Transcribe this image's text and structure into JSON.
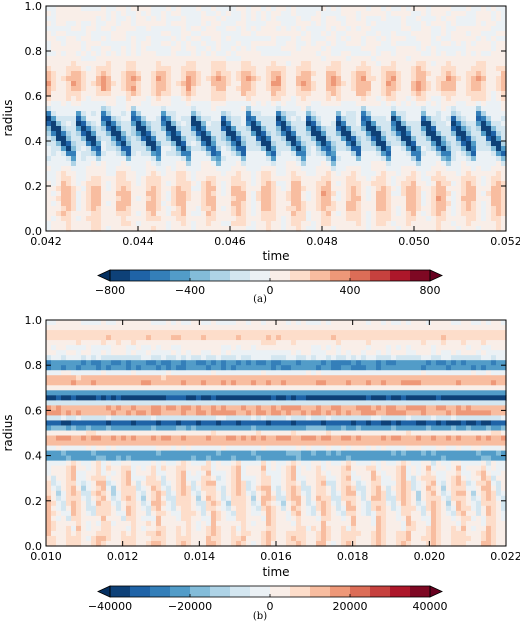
{
  "chart_data": [
    {
      "type": "heatmap",
      "panel": "(a)",
      "xlabel": "time",
      "ylabel": "radius",
      "xlim": [
        0.042,
        0.052
      ],
      "ylim": [
        0.0,
        1.0
      ],
      "xticks": [
        "0.042",
        "0.044",
        "0.046",
        "0.048",
        "0.050",
        "0.052"
      ],
      "yticks": [
        "0.0",
        "0.2",
        "0.4",
        "0.6",
        "0.8",
        "1.0"
      ],
      "colorbar": {
        "colormap": "RdBu_r",
        "vmin": -800,
        "vmax": 800,
        "ticks": [
          "−800",
          "−400",
          "0",
          "400",
          "800"
        ],
        "levels": 16,
        "extend": "both"
      },
      "pattern": {
        "description_values": "periodic diagonal blue streaks centered near radius 0.43, weak red bands near 0.6-0.7 and 0.1-0.3",
        "period": 0.000625,
        "band_center": 0.43,
        "band_width": 0.13,
        "core_value": -800,
        "upper_red_center": 0.66,
        "upper_red_value": 260,
        "lower_red_center": 0.15,
        "lower_red_value": 230,
        "top_red_limit": 0.77
      }
    },
    {
      "type": "heatmap",
      "panel": "(b)",
      "xlabel": "time",
      "ylabel": "radius",
      "xlim": [
        0.01,
        0.022
      ],
      "ylim": [
        0.0,
        1.0
      ],
      "xticks": [
        "0.010",
        "0.012",
        "0.014",
        "0.016",
        "0.018",
        "0.020",
        "0.022"
      ],
      "yticks": [
        "0.0",
        "0.2",
        "0.4",
        "0.6",
        "0.8",
        "1.0"
      ],
      "colorbar": {
        "colormap": "RdBu_r",
        "vmin": -40000,
        "vmax": 40000,
        "ticks": [
          "−40000",
          "−20000",
          "0",
          "20000",
          "40000"
        ],
        "levels": 16,
        "extend": "both"
      },
      "pattern": {
        "description_values": "horizontal alternating bands at upper radii; curved periodic structures below radius 0.4",
        "blue_bands": [
          {
            "r": 0.8,
            "value": -30000
          },
          {
            "r": 0.66,
            "value": -38000
          },
          {
            "r": 0.54,
            "value": -36000
          },
          {
            "r": 0.4,
            "value": -26000
          }
        ],
        "red_bands": [
          {
            "r": 0.93,
            "value": 9000
          },
          {
            "r": 0.73,
            "value": 15000
          },
          {
            "r": 0.6,
            "value": 18000
          },
          {
            "r": 0.47,
            "value": 16000
          }
        ],
        "lower_red_value": 10000,
        "curve_period": 0.00072
      }
    }
  ],
  "captions": [
    "(a)",
    "(b)"
  ]
}
